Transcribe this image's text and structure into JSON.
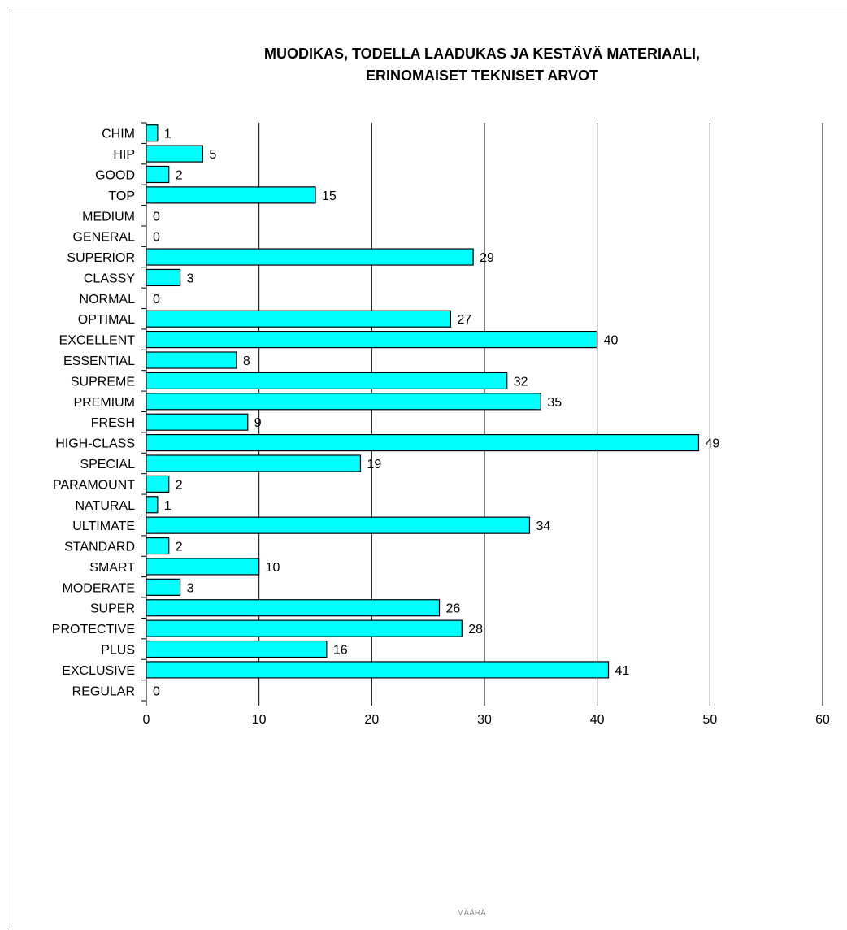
{
  "chart_data": {
    "type": "bar",
    "orientation": "horizontal",
    "title": "MUODIKAS, TODELLA LAADUKAS JA KESTÄVÄ MATERIAALI,\nERINOMAISET TEKNISET ARVOT",
    "title_lines": [
      "MUODIKAS, TODELLA LAADUKAS JA KESTÄVÄ MATERIAALI,",
      "ERINOMAISET TEKNISET ARVOT"
    ],
    "xlabel": "MÄÄRÄ",
    "ylabel": "",
    "xlim": [
      0,
      60
    ],
    "x_ticks": [
      0,
      10,
      20,
      30,
      40,
      50,
      60
    ],
    "grid": "vertical major gridlines",
    "legend": "none",
    "bar_color": "#00FFFF",
    "bar_edge_color": "#000000",
    "data_labels": true,
    "categories": [
      "CHIM",
      "HIP",
      "GOOD",
      "TOP",
      "MEDIUM",
      "GENERAL",
      "SUPERIOR",
      "CLASSY",
      "NORMAL",
      "OPTIMAL",
      "EXCELLENT",
      "ESSENTIAL",
      "SUPREME",
      "PREMIUM",
      "FRESH",
      "HIGH-CLASS",
      "SPECIAL",
      "PARAMOUNT",
      "NATURAL",
      "ULTIMATE",
      "STANDARD",
      "SMART",
      "MODERATE",
      "SUPER",
      "PROTECTIVE",
      "PLUS",
      "EXCLUSIVE",
      "REGULAR"
    ],
    "values": [
      1,
      5,
      2,
      15,
      0,
      0,
      29,
      3,
      0,
      27,
      40,
      8,
      32,
      35,
      9,
      49,
      19,
      2,
      1,
      34,
      2,
      10,
      3,
      26,
      28,
      16,
      41,
      0
    ]
  }
}
